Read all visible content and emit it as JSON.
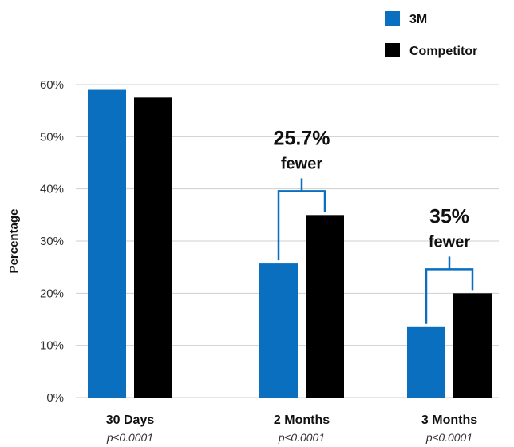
{
  "chart_data": {
    "type": "bar",
    "ylabel": "Percentage",
    "ylim": [
      0,
      60
    ],
    "yticks": [
      "0%",
      "10%",
      "20%",
      "30%",
      "40%",
      "50%",
      "60%"
    ],
    "ytick_values": [
      0,
      10,
      20,
      30,
      40,
      50,
      60
    ],
    "grid": true,
    "legend_position": "top-right",
    "categories": [
      "30 Days",
      "2 Months",
      "3 Months"
    ],
    "category_notes": [
      "p≤0.0001",
      "p≤0.0001",
      "p≤0.0001"
    ],
    "series": [
      {
        "name": "3M",
        "color": "#0b6fc0",
        "values": [
          59,
          25.7,
          13.5
        ]
      },
      {
        "name": "Competitor",
        "color": "#000000",
        "values": [
          57.5,
          35,
          20
        ]
      }
    ],
    "annotations": [
      {
        "category": "2 Months",
        "line1": "25.7%",
        "line2": "fewer"
      },
      {
        "category": "3 Months",
        "line1": "35%",
        "line2": "fewer"
      }
    ],
    "bracket_color": "#0b6fc0"
  }
}
